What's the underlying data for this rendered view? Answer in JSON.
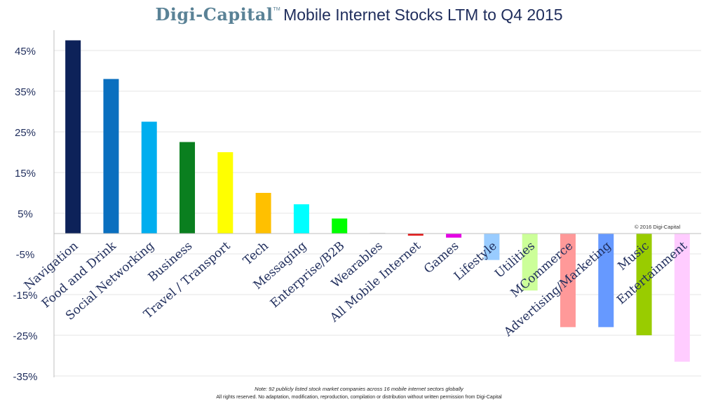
{
  "header": {
    "brand": "Digi-Capital",
    "trademark": "TM",
    "title": "Mobile Internet Stocks LTM to Q4 2015"
  },
  "footer": {
    "note": "Note: 92 publicly listed stock market companies across 16 mobile internet sectors globally",
    "rights": "All rights reserved. No adaptation, modification, reproduction, compilation or distribution without written permission from Digi-Capital"
  },
  "copyright": "© 2016 Digi-Capital",
  "chart_data": {
    "type": "bar",
    "title": "Mobile Internet Stocks LTM to Q4 2015",
    "xlabel": "",
    "ylabel": "",
    "ylim": [
      -35,
      50
    ],
    "grid": true,
    "yticks": [
      "45%",
      "35%",
      "25%",
      "15%",
      "5%",
      "-5%",
      "-15%",
      "-25%",
      "-35%"
    ],
    "ytick_values": [
      45,
      35,
      25,
      15,
      5,
      -5,
      -15,
      -25,
      -35
    ],
    "categories": [
      "Navigation",
      "Food and Drink",
      "Social Networking",
      "Business",
      "Travel / Transport",
      "Tech",
      "Messaging",
      "Enterprise/B2B",
      "Wearables",
      "All Mobile Internet",
      "Games",
      "Lifestyle",
      "Utilities",
      "MCommerce",
      "Advertising/Marketing",
      "Music",
      "Entertainment"
    ],
    "values": [
      47.5,
      38,
      27.5,
      22.5,
      20,
      10,
      7.2,
      3.7,
      0.2,
      -0.5,
      -1,
      -6.5,
      -14,
      -23,
      -23,
      -25,
      -31.5
    ],
    "colors": [
      "#0d2259",
      "#0a6fbf",
      "#00aeef",
      "#0a7f1f",
      "#ffff00",
      "#ffc000",
      "#00ffff",
      "#00ff00",
      "#e0e0e0",
      "#e01010",
      "#e400e4",
      "#99ccff",
      "#ccff99",
      "#ff9999",
      "#6699ff",
      "#99cc00",
      "#ffccff"
    ]
  }
}
